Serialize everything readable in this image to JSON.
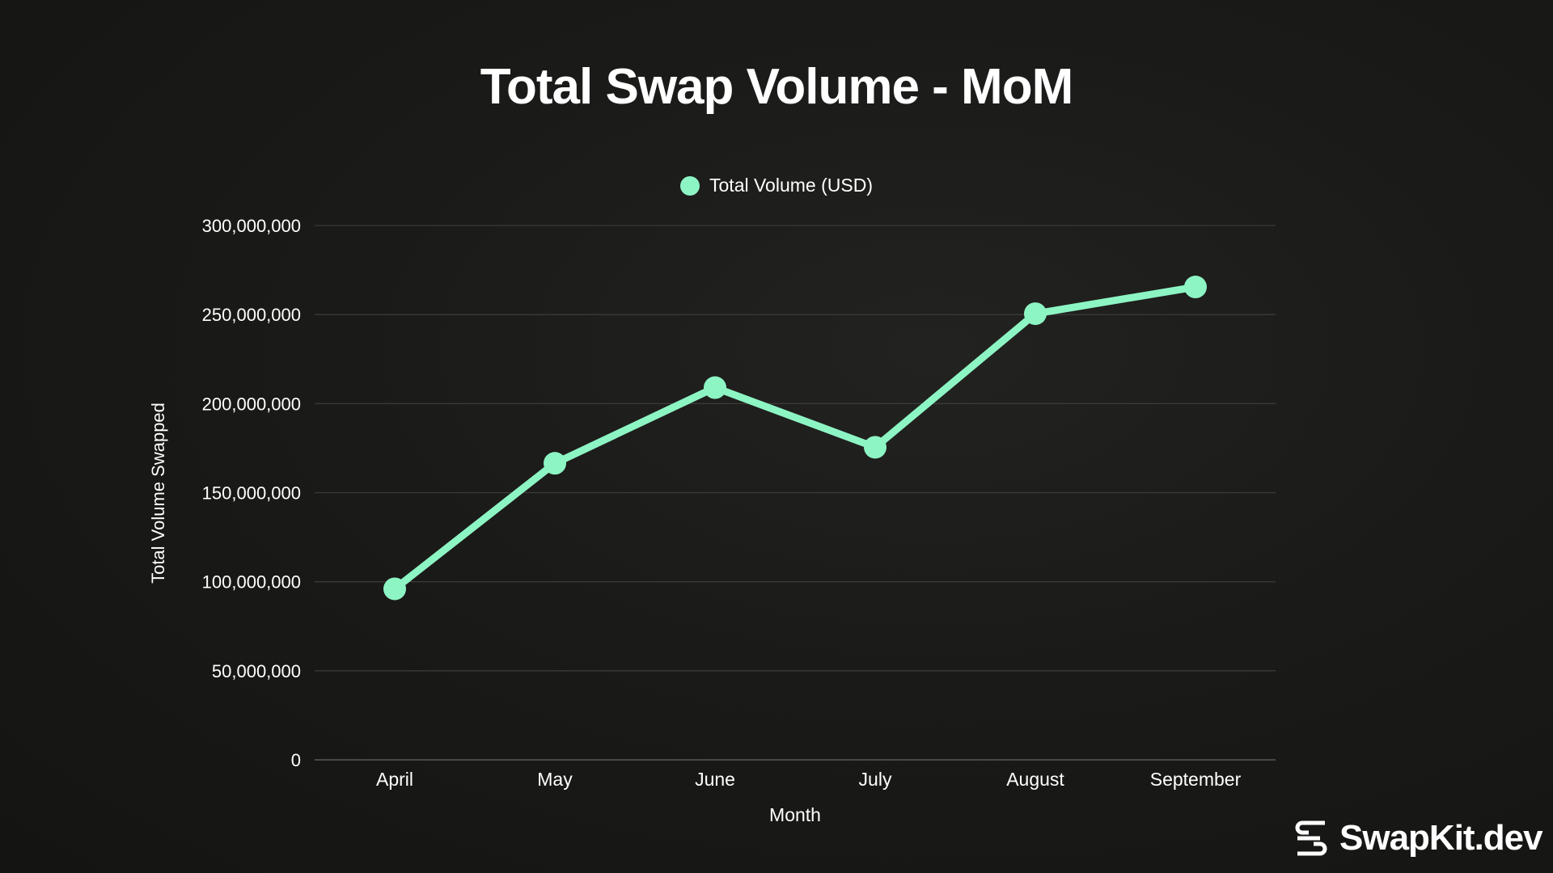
{
  "chart_data": {
    "type": "line",
    "title": "Total Swap Volume - MoM",
    "xlabel": "Month",
    "ylabel": "Total Volume Swapped",
    "categories": [
      "April",
      "May",
      "June",
      "July",
      "August",
      "September"
    ],
    "series": [
      {
        "name": "Total Volume (USD)",
        "values": [
          96000000,
          166500000,
          209000000,
          175500000,
          250500000,
          265500000
        ],
        "color": "#8df5c4"
      }
    ],
    "ylim": [
      0,
      300000000
    ],
    "yticks": [
      0,
      50000000,
      100000000,
      150000000,
      200000000,
      250000000,
      300000000
    ],
    "ytick_labels": [
      "0",
      "50,000,000",
      "100,000,000",
      "150,000,000",
      "200,000,000",
      "250,000,000",
      "300,000,000"
    ],
    "grid": true,
    "legend_position": "top-center"
  },
  "brand": {
    "name": "SwapKit.dev"
  }
}
